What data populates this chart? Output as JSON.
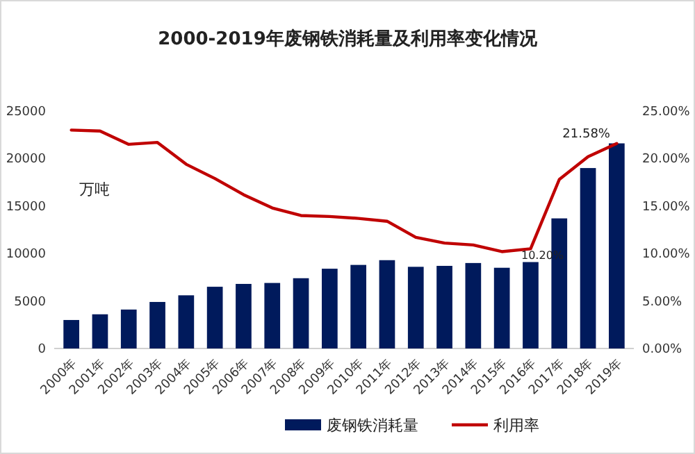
{
  "chart_data": {
    "type": "bar",
    "title": "2000-2019年废钢铁消耗量及利用率变化情况",
    "categories": [
      "2000年",
      "2001年",
      "2002年",
      "2003年",
      "2004年",
      "2005年",
      "2006年",
      "2007年",
      "2008年",
      "2009年",
      "2010年",
      "2011年",
      "2012年",
      "2013年",
      "2014年",
      "2015年",
      "2016年",
      "2017年",
      "2018年",
      "2019年"
    ],
    "series": [
      {
        "name": "废钢铁消耗量",
        "color": "#001a5c",
        "values": [
          3000,
          3600,
          4100,
          4900,
          5600,
          6500,
          6800,
          6900,
          7400,
          8400,
          8800,
          9300,
          8600,
          8700,
          9000,
          8500,
          9100,
          13700,
          19000,
          21600
        ]
      },
      {
        "name": "利用率",
        "type": "line",
        "axis": "y2",
        "color": "#c00000",
        "values": [
          23.0,
          22.9,
          21.5,
          21.7,
          19.4,
          17.9,
          16.2,
          14.8,
          14.0,
          13.9,
          13.7,
          13.4,
          11.7,
          11.1,
          10.9,
          10.2,
          10.5,
          17.8,
          20.2,
          21.58
        ]
      }
    ],
    "ylim": [
      0,
      25000
    ],
    "yticks": [
      0,
      5000,
      10000,
      15000,
      20000,
      25000
    ],
    "y2lim": [
      0,
      25
    ],
    "y2ticks": [
      {
        "value": 0,
        "label": "0.00%"
      },
      {
        "value": 5,
        "label": "5.00%"
      },
      {
        "value": 10,
        "label": "10.00%"
      },
      {
        "value": 15,
        "label": "15.00%"
      },
      {
        "value": 20,
        "label": "20.00%"
      },
      {
        "value": 25,
        "label": "25.00%"
      }
    ],
    "annotations": [
      "万吨",
      "10.20%",
      "21.58%"
    ],
    "legend": "bottom",
    "grid": false,
    "marker": "none",
    "line_style": "solid"
  }
}
